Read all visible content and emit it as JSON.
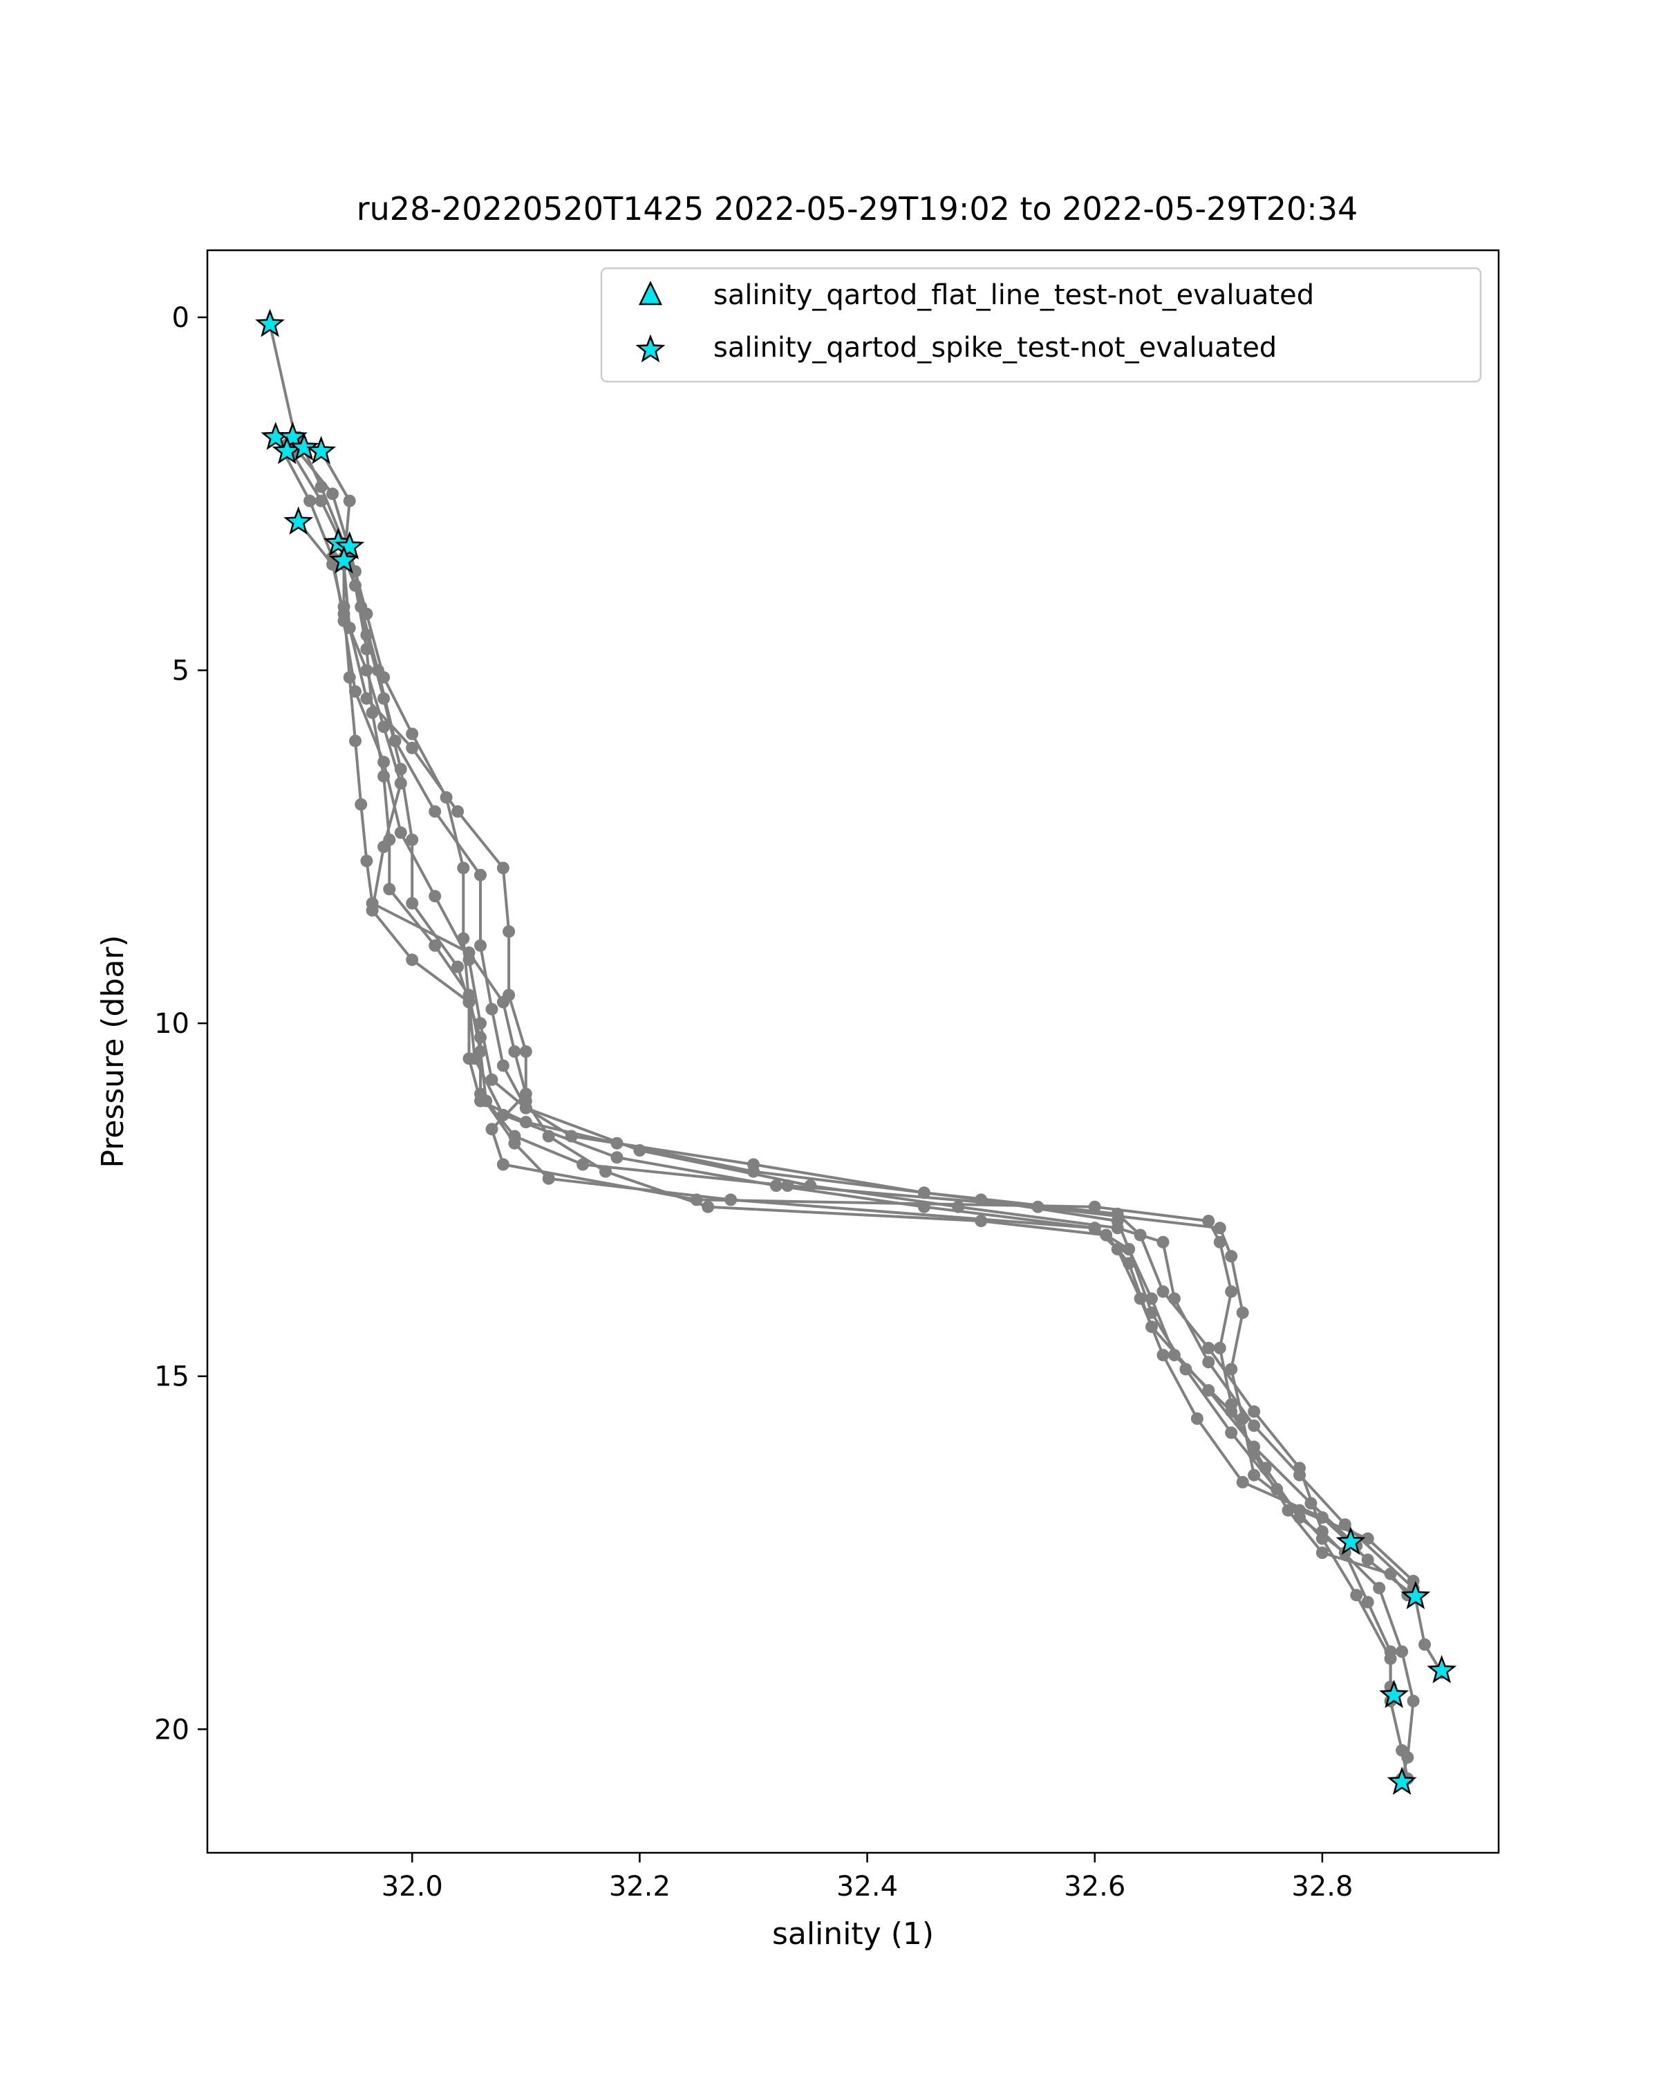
{
  "chart_data": {
    "type": "line",
    "title": "ru28-20220520T1425 2022-05-29T19:02 to 2022-05-29T20:34",
    "xlabel": "salinity (1)",
    "ylabel": "Pressure (dbar)",
    "xlim": [
      31.82,
      32.955
    ],
    "ylim": [
      21.75,
      -0.95
    ],
    "y_inverted": true,
    "x_ticks": [
      32.0,
      32.2,
      32.4,
      32.6,
      32.8
    ],
    "x_tick_labels": [
      "32.0",
      "32.2",
      "32.4",
      "32.6",
      "32.8"
    ],
    "y_ticks": [
      0,
      5,
      10,
      15,
      20
    ],
    "y_tick_labels": [
      "0",
      "5",
      "10",
      "15",
      "20"
    ],
    "grid": false,
    "legend_position": "upper-right",
    "colors": {
      "profile_line": "#808080",
      "marker_fill": "#00e5ee",
      "marker_edge": "#000000"
    },
    "legend": [
      {
        "label": "salinity_qartod_flat_line_test-not_evaluated",
        "marker": "triangle"
      },
      {
        "label": "salinity_qartod_spike_test-not_evaluated",
        "marker": "star"
      }
    ],
    "series": [
      {
        "points": [
          [
            31.875,
            0.1
          ],
          [
            31.9,
            1.9
          ],
          [
            31.93,
            2.5
          ],
          [
            31.945,
            3.3
          ],
          [
            31.96,
            4.2
          ],
          [
            31.975,
            5.1
          ],
          [
            32.0,
            5.9
          ],
          [
            32.03,
            6.8
          ],
          [
            32.045,
            7.8
          ],
          [
            32.045,
            8.8
          ],
          [
            32.05,
            9.7
          ],
          [
            32.055,
            10.5
          ],
          [
            32.08,
            11.3
          ],
          [
            32.18,
            11.9
          ],
          [
            32.32,
            12.3
          ],
          [
            32.45,
            12.6
          ],
          [
            32.6,
            12.9
          ],
          [
            32.63,
            13.2
          ],
          [
            32.65,
            14.1
          ],
          [
            32.68,
            14.9
          ],
          [
            32.72,
            15.8
          ],
          [
            32.76,
            16.6
          ],
          [
            32.8,
            17.3
          ],
          [
            32.83,
            18.1
          ],
          [
            32.86,
            19.0
          ],
          [
            32.86,
            19.4
          ]
        ]
      },
      {
        "points": [
          [
            31.88,
            1.7
          ],
          [
            31.91,
            2.6
          ],
          [
            31.93,
            3.4
          ],
          [
            31.94,
            4.3
          ],
          [
            31.95,
            5.3
          ],
          [
            31.975,
            6.3
          ],
          [
            31.99,
            7.3
          ],
          [
            32.02,
            8.2
          ],
          [
            32.05,
            9.1
          ],
          [
            32.06,
            10.0
          ],
          [
            32.07,
            10.8
          ],
          [
            32.1,
            11.2
          ],
          [
            32.14,
            11.6
          ],
          [
            32.3,
            12.0
          ],
          [
            32.45,
            12.4
          ],
          [
            32.62,
            12.7
          ],
          [
            32.64,
            13.0
          ],
          [
            32.66,
            13.8
          ],
          [
            32.7,
            14.6
          ],
          [
            32.74,
            15.5
          ],
          [
            32.78,
            16.3
          ],
          [
            32.8,
            17.2
          ],
          [
            32.85,
            18.0
          ],
          [
            32.87,
            18.9
          ],
          [
            32.88,
            19.6
          ],
          [
            32.875,
            20.4
          ],
          [
            32.87,
            20.7
          ]
        ]
      },
      {
        "points": [
          [
            31.89,
            1.8
          ],
          [
            31.92,
            2.6
          ],
          [
            31.95,
            3.6
          ],
          [
            31.96,
            4.5
          ],
          [
            31.975,
            5.4
          ],
          [
            31.99,
            6.4
          ],
          [
            32.0,
            7.4
          ],
          [
            32.0,
            8.3
          ],
          [
            32.04,
            9.2
          ],
          [
            32.06,
            10.2
          ],
          [
            32.06,
            11.0
          ],
          [
            32.09,
            11.7
          ],
          [
            32.12,
            12.2
          ],
          [
            32.28,
            12.5
          ],
          [
            32.6,
            12.9
          ],
          [
            32.62,
            13.2
          ],
          [
            32.64,
            13.9
          ],
          [
            32.66,
            14.7
          ],
          [
            32.69,
            15.6
          ],
          [
            32.73,
            16.5
          ],
          [
            32.8,
            17.0
          ],
          [
            32.84,
            17.6
          ],
          [
            32.88,
            18.1
          ]
        ]
      },
      {
        "points": [
          [
            31.9,
            1.7
          ],
          [
            31.92,
            2.4
          ],
          [
            31.94,
            3.2
          ],
          [
            31.955,
            4.1
          ],
          [
            31.97,
            5.0
          ],
          [
            31.985,
            6.0
          ],
          [
            32.02,
            7.0
          ],
          [
            32.06,
            7.9
          ],
          [
            32.06,
            8.9
          ],
          [
            32.07,
            9.8
          ],
          [
            32.08,
            10.6
          ],
          [
            32.1,
            11.2
          ],
          [
            32.2,
            11.8
          ],
          [
            32.35,
            12.3
          ],
          [
            32.48,
            12.6
          ],
          [
            32.62,
            12.9
          ],
          [
            32.66,
            13.1
          ],
          [
            32.67,
            13.9
          ],
          [
            32.7,
            14.8
          ],
          [
            32.74,
            15.7
          ],
          [
            32.78,
            16.4
          ],
          [
            32.82,
            17.1
          ],
          [
            32.88,
            18.0
          ],
          [
            32.89,
            18.8
          ],
          [
            32.905,
            19.2
          ]
        ]
      },
      {
        "points": [
          [
            31.92,
            1.9
          ],
          [
            31.945,
            2.6
          ],
          [
            31.94,
            3.5
          ],
          [
            31.945,
            4.4
          ],
          [
            31.96,
            5.4
          ],
          [
            32.0,
            6.1
          ],
          [
            32.04,
            7.0
          ],
          [
            32.08,
            7.8
          ],
          [
            32.085,
            8.7
          ],
          [
            32.085,
            9.6
          ],
          [
            32.1,
            10.4
          ],
          [
            32.1,
            11.1
          ],
          [
            32.12,
            11.6
          ],
          [
            32.17,
            12.1
          ],
          [
            32.26,
            12.6
          ],
          [
            32.5,
            12.8
          ],
          [
            32.61,
            13.0
          ],
          [
            32.63,
            13.4
          ],
          [
            32.65,
            14.3
          ],
          [
            32.7,
            15.2
          ],
          [
            32.74,
            16.0
          ],
          [
            32.79,
            16.8
          ],
          [
            32.83,
            17.4
          ]
        ]
      },
      {
        "points": [
          [
            31.9,
            2.9
          ],
          [
            31.93,
            3.5
          ],
          [
            31.94,
            4.2
          ],
          [
            31.96,
            5.0
          ],
          [
            31.975,
            5.8
          ],
          [
            31.99,
            6.6
          ],
          [
            31.975,
            7.5
          ],
          [
            31.965,
            8.4
          ],
          [
            32.0,
            9.1
          ],
          [
            32.05,
            9.7
          ],
          [
            32.05,
            10.5
          ],
          [
            32.06,
            11.1
          ],
          [
            32.1,
            11.4
          ],
          [
            32.18,
            11.7
          ],
          [
            32.3,
            12.1
          ],
          [
            32.5,
            12.5
          ],
          [
            32.62,
            12.8
          ],
          [
            32.63,
            13.2
          ],
          [
            32.65,
            13.9
          ],
          [
            32.67,
            14.7
          ],
          [
            32.72,
            15.5
          ],
          [
            32.75,
            16.3
          ],
          [
            32.78,
            17.0
          ],
          [
            32.82,
            17.5
          ],
          [
            32.84,
            18.2
          ],
          [
            32.86,
            18.9
          ],
          [
            32.86,
            19.6
          ],
          [
            32.87,
            20.3
          ],
          [
            32.875,
            20.7
          ]
        ]
      },
      {
        "points": [
          [
            31.94,
            3.4
          ],
          [
            31.94,
            4.1
          ],
          [
            31.945,
            5.1
          ],
          [
            31.95,
            6.0
          ],
          [
            31.955,
            6.9
          ],
          [
            31.96,
            7.7
          ],
          [
            31.965,
            8.3
          ],
          [
            32.05,
            9.0
          ],
          [
            32.08,
            9.7
          ],
          [
            32.09,
            10.4
          ],
          [
            32.1,
            11.0
          ],
          [
            32.07,
            11.5
          ],
          [
            32.08,
            12.0
          ],
          [
            32.25,
            12.5
          ],
          [
            32.6,
            12.6
          ],
          [
            32.7,
            12.8
          ],
          [
            32.71,
            13.1
          ],
          [
            32.72,
            13.8
          ],
          [
            32.71,
            14.6
          ],
          [
            32.72,
            15.4
          ],
          [
            32.74,
            16.1
          ],
          [
            32.77,
            16.9
          ],
          [
            32.8,
            17.5
          ],
          [
            32.86,
            17.8
          ],
          [
            32.875,
            18.1
          ]
        ]
      },
      {
        "points": [
          [
            31.935,
            3.2
          ],
          [
            31.95,
            3.8
          ],
          [
            31.96,
            4.7
          ],
          [
            31.965,
            5.6
          ],
          [
            31.975,
            6.5
          ],
          [
            31.98,
            7.4
          ],
          [
            31.98,
            8.1
          ],
          [
            32.02,
            8.9
          ],
          [
            32.05,
            9.6
          ],
          [
            32.06,
            10.4
          ],
          [
            32.065,
            11.1
          ],
          [
            32.09,
            11.6
          ],
          [
            32.15,
            12.0
          ],
          [
            32.33,
            12.3
          ],
          [
            32.55,
            12.6
          ],
          [
            32.71,
            12.9
          ],
          [
            32.72,
            13.3
          ],
          [
            32.73,
            14.1
          ],
          [
            32.72,
            14.9
          ],
          [
            32.73,
            15.6
          ],
          [
            32.74,
            16.4
          ],
          [
            32.78,
            16.9
          ],
          [
            32.84,
            17.3
          ],
          [
            32.88,
            17.9
          ]
        ]
      }
    ],
    "spike_test_markers": [
      [
        31.875,
        0.1
      ],
      [
        31.88,
        1.7
      ],
      [
        31.895,
        1.7
      ],
      [
        31.89,
        1.9
      ],
      [
        31.905,
        1.85
      ],
      [
        31.92,
        1.9
      ],
      [
        31.9,
        2.9
      ],
      [
        31.935,
        3.2
      ],
      [
        31.945,
        3.25
      ],
      [
        31.94,
        3.45
      ],
      [
        32.825,
        17.35
      ],
      [
        32.882,
        18.12
      ],
      [
        32.905,
        19.17
      ],
      [
        32.863,
        19.52
      ],
      [
        32.87,
        20.75
      ]
    ],
    "flat_line_test_markers": []
  }
}
